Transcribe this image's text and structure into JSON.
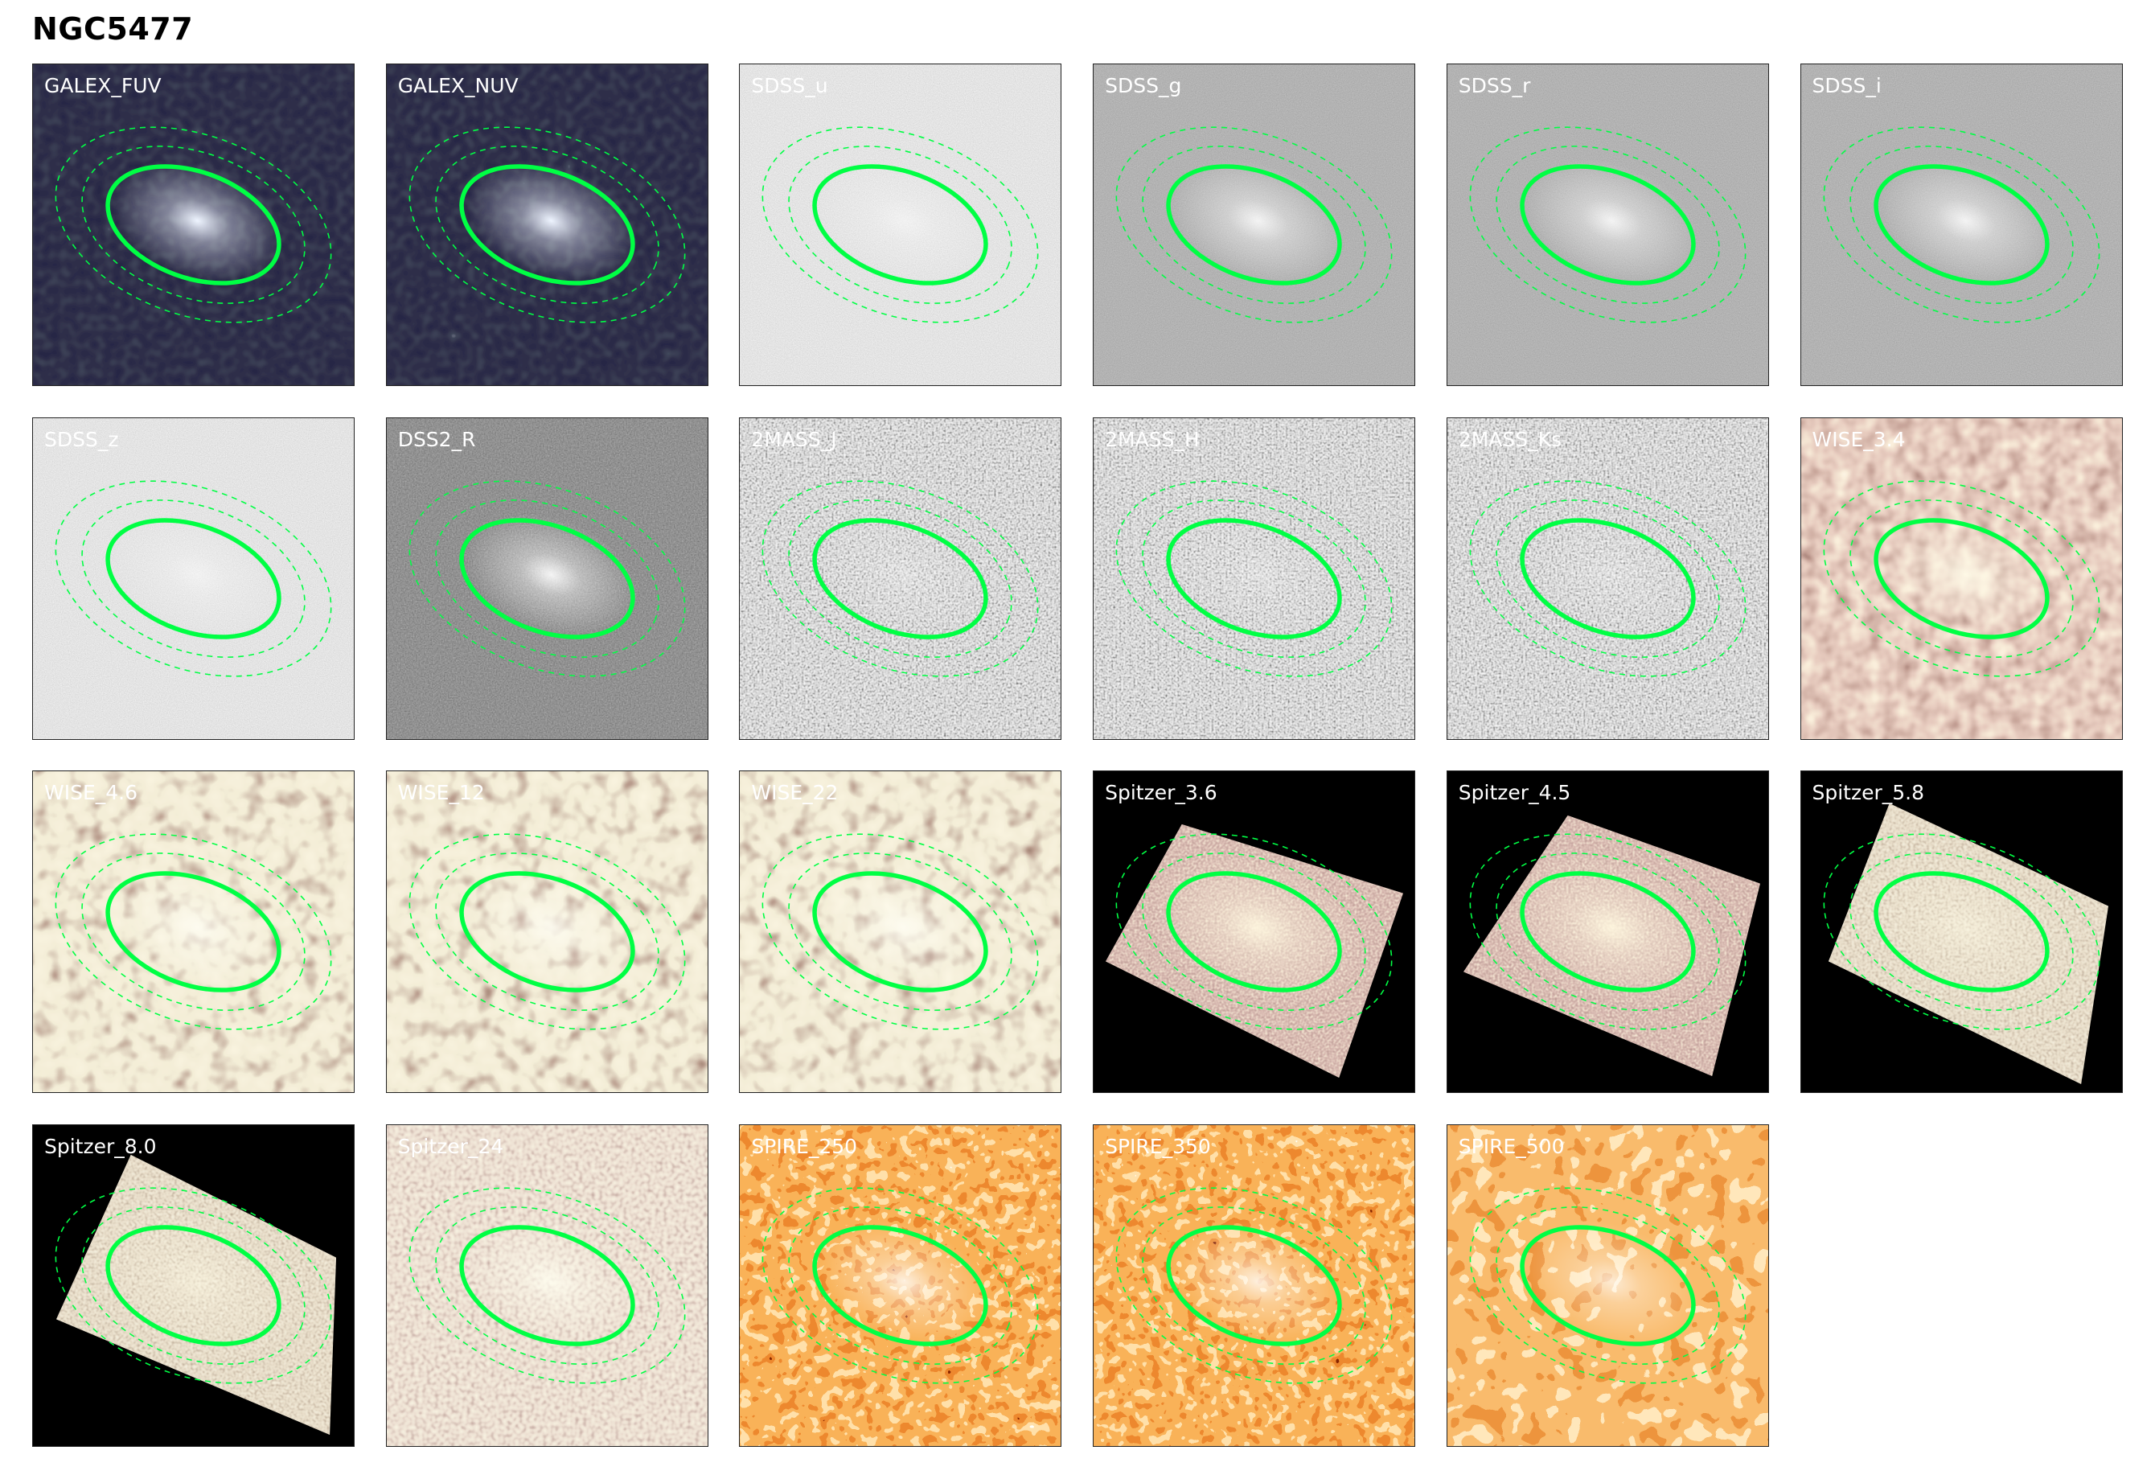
{
  "title": "NGC5477",
  "aperture_color": "#00ff44",
  "panels": [
    {
      "label": "GALEX_FUV",
      "colormap": "bone-dark"
    },
    {
      "label": "GALEX_NUV",
      "colormap": "bone-dark"
    },
    {
      "label": "SDSS_u",
      "colormap": "gray-light"
    },
    {
      "label": "SDSS_g",
      "colormap": "gray-mid"
    },
    {
      "label": "SDSS_r",
      "colormap": "gray-mid"
    },
    {
      "label": "SDSS_i",
      "colormap": "gray-mid"
    },
    {
      "label": "SDSS_z",
      "colormap": "gray-light"
    },
    {
      "label": "DSS2_R",
      "colormap": "gray-dark"
    },
    {
      "label": "2MASS_J",
      "colormap": "gray-bw"
    },
    {
      "label": "2MASS_H",
      "colormap": "gray-bw"
    },
    {
      "label": "2MASS_Ks",
      "colormap": "gray-bw"
    },
    {
      "label": "WISE_3.4",
      "colormap": "pink"
    },
    {
      "label": "WISE_4.6",
      "colormap": "pink-cream"
    },
    {
      "label": "WISE_12",
      "colormap": "pink-cream"
    },
    {
      "label": "WISE_22",
      "colormap": "pink-cream"
    },
    {
      "label": "Spitzer_3.6",
      "colormap": "pink-masked"
    },
    {
      "label": "Spitzer_4.5",
      "colormap": "pink-masked"
    },
    {
      "label": "Spitzer_5.8",
      "colormap": "cream-masked"
    },
    {
      "label": "Spitzer_8.0",
      "colormap": "cream-masked"
    },
    {
      "label": "Spitzer_24",
      "colormap": "pink-cream-fine"
    },
    {
      "label": "SPIRE_250",
      "colormap": "heat"
    },
    {
      "label": "SPIRE_350",
      "colormap": "heat"
    },
    {
      "label": "SPIRE_500",
      "colormap": "heat-coarse"
    }
  ]
}
